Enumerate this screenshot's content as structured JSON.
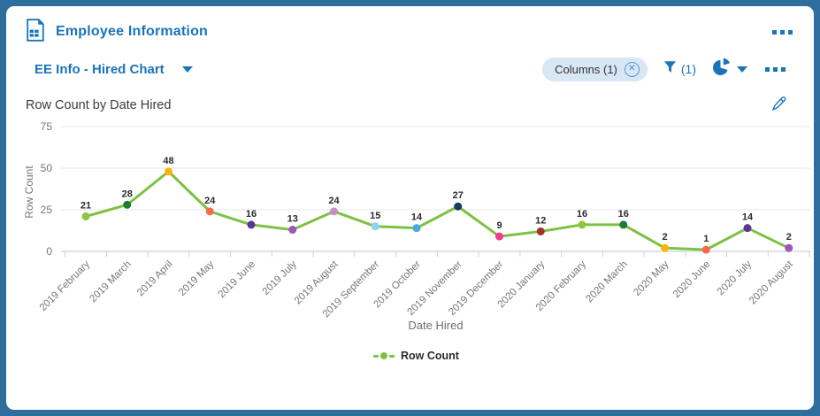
{
  "header": {
    "title": "Employee Information"
  },
  "toolbar": {
    "view_selector_label": "EE Info - Hired Chart",
    "columns_pill_label": "Columns (1)",
    "filter_badge": "(1)"
  },
  "chart_data": {
    "type": "line",
    "title": "Row Count by Date Hired",
    "xlabel": "Date Hired",
    "ylabel": "Row Count",
    "legend_position": "bottom",
    "grid": true,
    "ylim": [
      0,
      75
    ],
    "yticks": [
      0,
      25,
      50,
      75
    ],
    "categories": [
      "2019 February",
      "2019 March",
      "2019 April",
      "2019 May",
      "2019 June",
      "2019 July",
      "2019 August",
      "2019 September",
      "2019 October",
      "2019 November",
      "2019 December",
      "2020 January",
      "2020 February",
      "2020 March",
      "2020 May",
      "2020 June",
      "2020 July",
      "2020 August"
    ],
    "series": [
      {
        "name": "Row Count",
        "values": [
          21,
          28,
          48,
          24,
          16,
          13,
          24,
          15,
          14,
          27,
          9,
          12,
          16,
          16,
          2,
          1,
          14,
          2
        ]
      }
    ],
    "line_color": "#7DC142",
    "point_colors": [
      "#8CC63E",
      "#1F7A33",
      "#FFB30A",
      "#F9694A",
      "#5E3597",
      "#A154B8",
      "#C98BC5",
      "#93CFF1",
      "#47A9DE",
      "#1C3A57",
      "#EE3D8B",
      "#A3322B",
      "#8CC63E",
      "#1F7A33",
      "#FFB30A",
      "#F9694A",
      "#5E3597",
      "#A154B8"
    ]
  },
  "colors": {
    "accent_blue": "#1A74BA",
    "frame_border": "#2E6E9E",
    "pill_bg": "#D7E7F6",
    "grid_line": "#E4E7EA",
    "axis_line": "#C9D2D9",
    "tick_text": "#767676",
    "value_text": "#2B2B2B"
  },
  "icons": {
    "report": "report-document-icon",
    "close": "circle-x-icon",
    "filter": "filter-funnel-icon",
    "pie": "pie-chart-icon",
    "edit": "pencil-icon",
    "menu": "ellipsis-menu-icon"
  }
}
